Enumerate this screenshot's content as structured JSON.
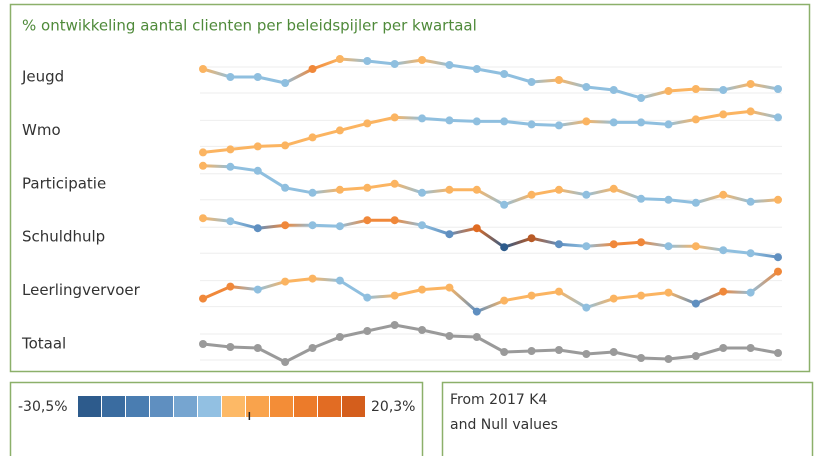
{
  "chart_data": {
    "type": "line",
    "title": "% ontwikkeling aantal clienten per beleidspijler per kwartaal",
    "ylim": [
      0,
      50
    ],
    "series": [
      {
        "name": "Jeugd",
        "values": [
          36,
          28,
          28,
          22,
          36,
          46,
          44,
          41,
          45,
          40,
          36,
          31,
          23,
          25,
          18,
          15,
          7,
          14,
          16,
          15,
          21,
          16
        ],
        "point_colors": [
          "#fbb461",
          "#8fbfdf",
          "#8fbfdf",
          "#8fbfdf",
          "#f0883a",
          "#fbb461",
          "#8fbfdf",
          "#8fbfdf",
          "#fbb461",
          "#8fbfdf",
          "#8fbfdf",
          "#8fbfdf",
          "#8fbfdf",
          "#fbb461",
          "#8fbfdf",
          "#8fbfdf",
          "#8fbfdf",
          "#fbb461",
          "#fbb461",
          "#8fbfdf",
          "#fbb461",
          "#8fbfdf"
        ]
      },
      {
        "name": "Wmo",
        "values": [
          6,
          9,
          12,
          13,
          21,
          28,
          35,
          41,
          40,
          38,
          37,
          37,
          34,
          33,
          37,
          36,
          36,
          34,
          39,
          44,
          47,
          41
        ],
        "point_colors": [
          "#fbb461",
          "#fbb461",
          "#fbb461",
          "#fbb461",
          "#fbb461",
          "#fbb461",
          "#fbb461",
          "#fbb461",
          "#8fbfdf",
          "#8fbfdf",
          "#8fbfdf",
          "#8fbfdf",
          "#8fbfdf",
          "#8fbfdf",
          "#fbb461",
          "#8fbfdf",
          "#8fbfdf",
          "#8fbfdf",
          "#fbb461",
          "#fbb461",
          "#fbb461",
          "#8fbfdf"
        ]
      },
      {
        "name": "Participatie",
        "values": [
          46,
          45,
          41,
          24,
          19,
          22,
          24,
          28,
          19,
          22,
          22,
          7,
          17,
          22,
          17,
          23,
          13,
          12,
          9,
          17,
          10,
          12
        ],
        "point_colors": [
          "#fbb461",
          "#8fbfdf",
          "#8fbfdf",
          "#8fbfdf",
          "#8fbfdf",
          "#fbb461",
          "#fbb461",
          "#fbb461",
          "#8fbfdf",
          "#fbb461",
          "#fbb461",
          "#8fbfdf",
          "#fbb461",
          "#fbb461",
          "#8fbfdf",
          "#fbb461",
          "#8fbfdf",
          "#8fbfdf",
          "#8fbfdf",
          "#fbb461",
          "#8fbfdf",
          "#fbb461"
        ]
      },
      {
        "name": "Schuldhulp",
        "values": [
          47,
          44,
          37,
          40,
          40,
          39,
          45,
          45,
          40,
          31,
          37,
          18,
          27,
          21,
          19,
          21,
          23,
          19,
          19,
          15,
          12,
          8
        ],
        "point_colors": [
          "#fbb461",
          "#8fbfdf",
          "#5f8fc0",
          "#f0883a",
          "#8fbfdf",
          "#8fbfdf",
          "#f0883a",
          "#f0883a",
          "#8fbfdf",
          "#5f8fc0",
          "#e06b22",
          "#2d5b8c",
          "#b85a26",
          "#5f8fc0",
          "#8fbfdf",
          "#f0883a",
          "#f0883a",
          "#8fbfdf",
          "#fbb461",
          "#8fbfdf",
          "#8fbfdf",
          "#5f8fc0"
        ]
      },
      {
        "name": "Leerlingvervoer",
        "values": [
          20,
          32,
          29,
          37,
          40,
          38,
          21,
          23,
          29,
          31,
          7,
          18,
          23,
          27,
          11,
          20,
          23,
          26,
          15,
          27,
          26,
          47
        ],
        "point_colors": [
          "#f0883a",
          "#f0883a",
          "#8fbfdf",
          "#fbb461",
          "#fbb461",
          "#8fbfdf",
          "#8fbfdf",
          "#fbb461",
          "#fbb461",
          "#fbb461",
          "#5f8fc0",
          "#fbb461",
          "#fbb461",
          "#fbb461",
          "#8fbfdf",
          "#fbb461",
          "#fbb461",
          "#fbb461",
          "#5f8fc0",
          "#f0883a",
          "#8fbfdf",
          "#f0883a"
        ]
      },
      {
        "name": "Totaal",
        "values": [
          28,
          25,
          24,
          10,
          24,
          35,
          41,
          47,
          42,
          36,
          35,
          20,
          21,
          22,
          18,
          20,
          14,
          13,
          16,
          24,
          24,
          19
        ],
        "point_colors": [
          "#9a9a9a",
          "#9a9a9a",
          "#9a9a9a",
          "#9a9a9a",
          "#9a9a9a",
          "#9a9a9a",
          "#9a9a9a",
          "#9a9a9a",
          "#9a9a9a",
          "#9a9a9a",
          "#9a9a9a",
          "#9a9a9a",
          "#9a9a9a",
          "#9a9a9a",
          "#9a9a9a",
          "#9a9a9a",
          "#9a9a9a",
          "#9a9a9a",
          "#9a9a9a",
          "#9a9a9a",
          "#9a9a9a",
          "#9a9a9a"
        ]
      }
    ],
    "color_legend": {
      "min_label": "-30,5%",
      "max_label": "20,3%",
      "colors": [
        "#2d5b8c",
        "#3a6ca0",
        "#4a7db1",
        "#5f8fc0",
        "#76a5d0",
        "#92c0e2",
        "#fdb966",
        "#f9a34c",
        "#f38d37",
        "#ec7b2a",
        "#e26c23",
        "#d45e1c"
      ]
    }
  },
  "note": {
    "lines": [
      "From 2017 K4",
      "and Null values"
    ]
  }
}
